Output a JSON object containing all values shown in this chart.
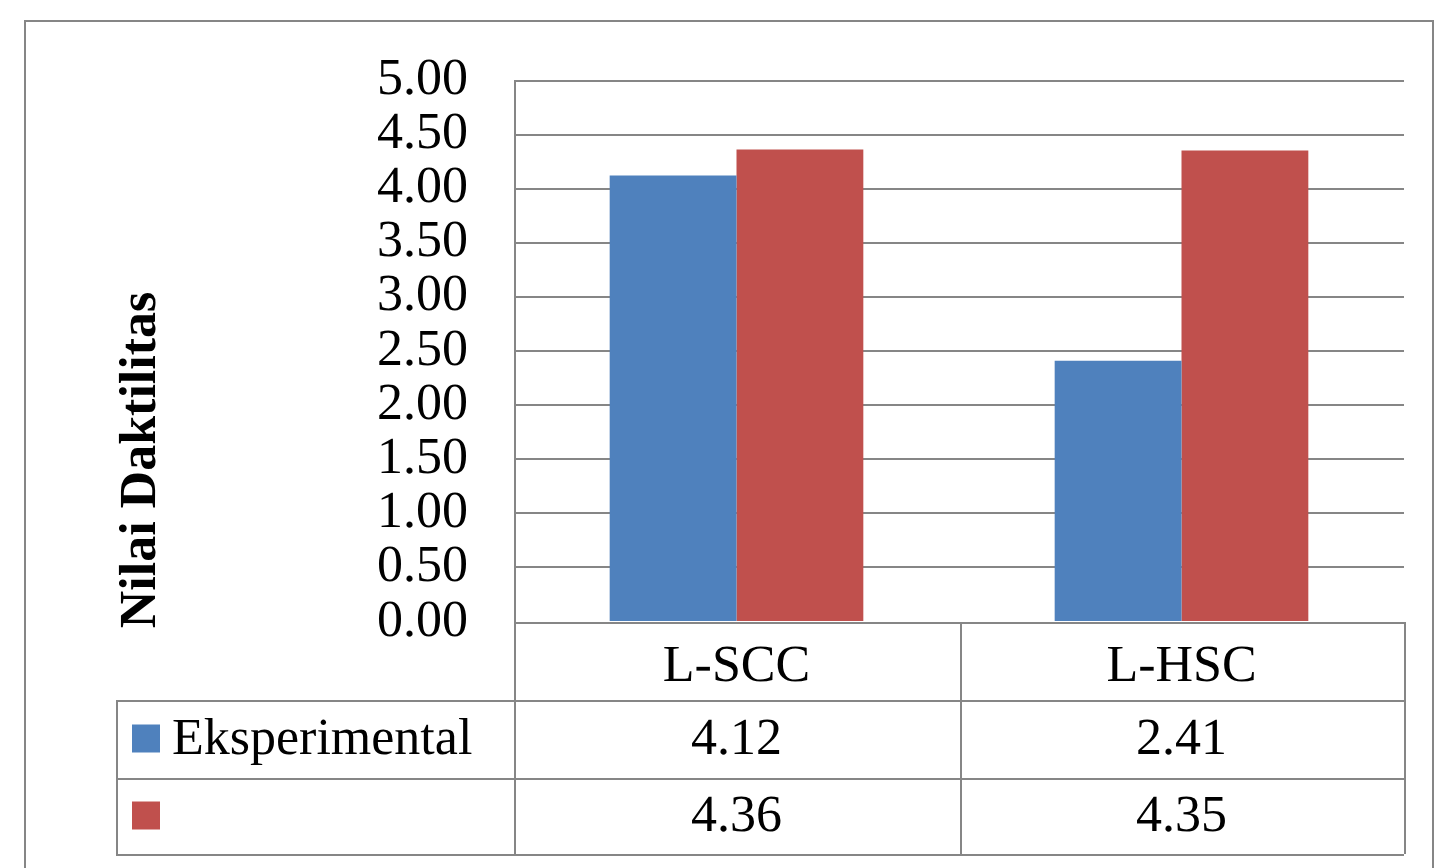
{
  "chart_data": {
    "type": "bar",
    "ylabel": "Nilai Daktilitas",
    "categories": [
      "L-SCC",
      "L-HSC"
    ],
    "series": [
      {
        "name": "Eksperimental",
        "color": "#4f81bd",
        "values": [
          4.12,
          2.41
        ]
      },
      {
        "color": "#c0504d",
        "values": [
          4.36,
          4.35
        ]
      }
    ],
    "ylim": [
      0,
      5
    ],
    "yticks": [
      {
        "value": 0,
        "label": "0.00"
      },
      {
        "value": 0.5,
        "label": "0.50"
      },
      {
        "value": 1,
        "label": "1.00"
      },
      {
        "value": 1.5,
        "label": "1.50"
      },
      {
        "value": 2,
        "label": "2.00"
      },
      {
        "value": 2.5,
        "label": "2.50"
      },
      {
        "value": 3,
        "label": "3.00"
      },
      {
        "value": 3.5,
        "label": "3.50"
      },
      {
        "value": 4,
        "label": "4.00"
      },
      {
        "value": 4.5,
        "label": "4.50"
      },
      {
        "value": 5,
        "label": "5.00"
      }
    ],
    "grid": "y",
    "legend": "bottom",
    "data_labels": true
  }
}
